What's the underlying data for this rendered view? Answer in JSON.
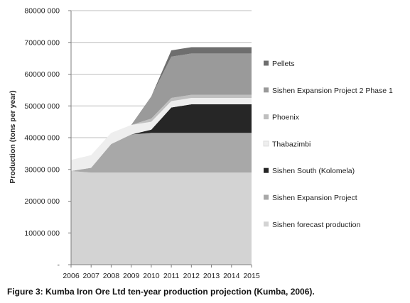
{
  "caption": "Figure 3: Kumba Iron Ore Ltd ten-year production projection (Kumba, 2006).",
  "chart_data": {
    "type": "area",
    "stacked": true,
    "title": "",
    "xlabel": "",
    "ylabel": "Production (tons per year)",
    "x": [
      "2006",
      "2007",
      "2008",
      "2009",
      "2010",
      "2011",
      "2012",
      "2013",
      "2014",
      "2015"
    ],
    "ylim": [
      0,
      80000000
    ],
    "yticks": [
      {
        "value": 0,
        "label": "-"
      },
      {
        "value": 10000000,
        "label": "10000 000"
      },
      {
        "value": 20000000,
        "label": "20000 000"
      },
      {
        "value": 30000000,
        "label": "30000 000"
      },
      {
        "value": 40000000,
        "label": "40000 000"
      },
      {
        "value": 50000000,
        "label": "50000 000"
      },
      {
        "value": 60000000,
        "label": "60000 000"
      },
      {
        "value": 70000000,
        "label": "70000 000"
      },
      {
        "value": 80000000,
        "label": "80000 000"
      }
    ],
    "grid": "horizontal",
    "legend_position": "right",
    "series": [
      {
        "name": "Sishen forecast production",
        "color": "#d3d3d3",
        "values": [
          29500000,
          29000000,
          29000000,
          29000000,
          29000000,
          29000000,
          29000000,
          29000000,
          29000000,
          29000000
        ]
      },
      {
        "name": "Sishen Expansion Project",
        "color": "#a8a8a8",
        "values": [
          0,
          1500000,
          9000000,
          12000000,
          12500000,
          12500000,
          12500000,
          12500000,
          12500000,
          12500000
        ]
      },
      {
        "name": "Sishen South (Kolomela)",
        "color": "#262626",
        "values": [
          0,
          0,
          0,
          0,
          1000000,
          8000000,
          9000000,
          9000000,
          9000000,
          9000000
        ]
      },
      {
        "name": "Thabazimbi",
        "color": "#eeeeee",
        "values": [
          3500000,
          4000000,
          3500000,
          3000000,
          2500000,
          2000000,
          2000000,
          2000000,
          2000000,
          2000000
        ]
      },
      {
        "name": "Phoenix",
        "color": "#bfbfbf",
        "values": [
          0,
          0,
          0,
          0,
          1000000,
          1000000,
          1000000,
          1000000,
          1000000,
          1000000
        ]
      },
      {
        "name": "Sishen Expansion Project 2 Phase 1",
        "color": "#9a9a9a",
        "values": [
          0,
          0,
          0,
          0,
          7000000,
          13000000,
          13000000,
          13000000,
          13000000,
          13000000
        ]
      },
      {
        "name": "Pellets",
        "color": "#6e6e6e",
        "values": [
          0,
          0,
          0,
          0,
          0,
          2000000,
          2000000,
          2000000,
          2000000,
          2000000
        ]
      }
    ]
  }
}
